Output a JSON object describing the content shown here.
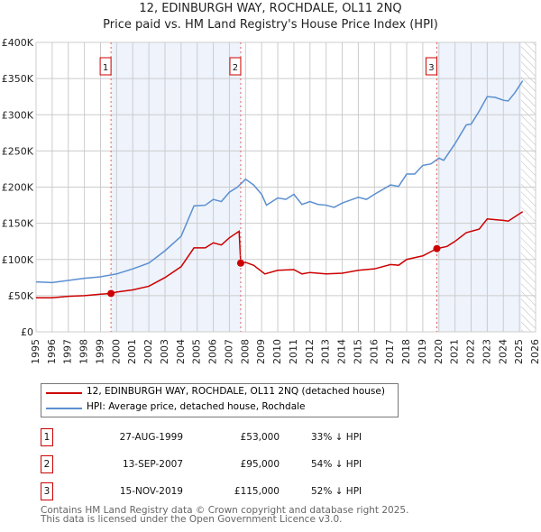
{
  "chart_data": {
    "type": "line",
    "title": "12, EDINBURGH WAY, ROCHDALE, OL11 2NQ",
    "subtitle": "Price paid vs. HM Land Registry's House Price Index (HPI)",
    "xlim": [
      1995,
      2026
    ],
    "ylim": [
      0,
      400000
    ],
    "x_ticks": [
      "1995",
      "1996",
      "1997",
      "1998",
      "1999",
      "2000",
      "2001",
      "2002",
      "2003",
      "2004",
      "2005",
      "2006",
      "2007",
      "2008",
      "2009",
      "2010",
      "2011",
      "2012",
      "2013",
      "2014",
      "2015",
      "2016",
      "2017",
      "2018",
      "2019",
      "2020",
      "2021",
      "2022",
      "2023",
      "2024",
      "2025",
      "2026"
    ],
    "y_ticks": [
      {
        "v": 0,
        "label": "£0"
      },
      {
        "v": 50000,
        "label": "£50K"
      },
      {
        "v": 100000,
        "label": "£100K"
      },
      {
        "v": 150000,
        "label": "£150K"
      },
      {
        "v": 200000,
        "label": "£200K"
      },
      {
        "v": 250000,
        "label": "£250K"
      },
      {
        "v": 300000,
        "label": "£300K"
      },
      {
        "v": 350000,
        "label": "£350K"
      },
      {
        "v": 400000,
        "label": "£400K"
      }
    ],
    "grid": true,
    "series": [
      {
        "name": "12, EDINBURGH WAY, ROCHDALE, OL11 2NQ (detached house)",
        "color": "#cc0000",
        "x": [
          1995,
          1996,
          1997,
          1998,
          1999,
          1999.65,
          2000,
          2001,
          2002,
          2003,
          2004,
          2004.8,
          2005.5,
          2006,
          2006.5,
          2007,
          2007.6,
          2007.7,
          2008,
          2008.5,
          2009.2,
          2010,
          2011,
          2011.5,
          2012,
          2013,
          2014,
          2015,
          2016,
          2017,
          2017.5,
          2018,
          2019,
          2019.87,
          2020.5,
          2021,
          2021.7,
          2022.5,
          2023,
          2023.5,
          2024,
          2024.3,
          2025.2
        ],
        "y": [
          47000,
          47000,
          49000,
          50000,
          52000,
          53000,
          55000,
          58000,
          63000,
          75000,
          90000,
          116000,
          116000,
          123000,
          120000,
          130000,
          139000,
          95000,
          96000,
          92000,
          80000,
          85000,
          86000,
          80000,
          82000,
          80000,
          81000,
          85000,
          87000,
          93000,
          92000,
          100000,
          105000,
          115000,
          118000,
          125000,
          137000,
          142000,
          156000,
          155000,
          154000,
          153000,
          166000
        ]
      },
      {
        "name": "HPI: Average price, detached house, Rochdale",
        "color": "#5b8fd0",
        "x": [
          1995,
          1996,
          1997,
          1998,
          1999,
          2000,
          2001,
          2002,
          2003,
          2004,
          2004.8,
          2005.5,
          2006,
          2006.5,
          2007,
          2007.5,
          2008,
          2008.5,
          2009,
          2009.3,
          2010,
          2010.5,
          2011,
          2011.5,
          2012,
          2012.5,
          2013,
          2013.5,
          2014,
          2015,
          2015.5,
          2016,
          2017,
          2017.5,
          2018,
          2018.5,
          2019,
          2019.5,
          2020,
          2020.3,
          2021,
          2021.7,
          2022,
          2022.5,
          2023,
          2023.5,
          2024,
          2024.3,
          2024.7,
          2025.2
        ],
        "y": [
          69000,
          68000,
          71000,
          74000,
          76000,
          80000,
          87000,
          95000,
          112000,
          132000,
          174000,
          175000,
          183000,
          180000,
          193000,
          200000,
          211000,
          203000,
          190000,
          175000,
          185000,
          183000,
          190000,
          176000,
          180000,
          176000,
          175000,
          172000,
          178000,
          186000,
          183000,
          190000,
          203000,
          201000,
          218000,
          218000,
          230000,
          232000,
          240000,
          237000,
          260000,
          286000,
          287000,
          305000,
          325000,
          324000,
          320000,
          319000,
          330000,
          347000
        ]
      }
    ],
    "sales": [
      {
        "n": "1",
        "x": 1999.65,
        "y": 53000
      },
      {
        "n": "2",
        "x": 2007.7,
        "y": 95000
      },
      {
        "n": "3",
        "x": 2019.87,
        "y": 115000
      }
    ],
    "shaded_ranges": [
      [
        1999.65,
        2007.7
      ],
      [
        2019.87,
        2025.1
      ]
    ],
    "hatched_from": 2025.1
  },
  "legend": {
    "red": "12, EDINBURGH WAY, ROCHDALE, OL11 2NQ (detached house)",
    "blue": "HPI: Average price, detached house, Rochdale"
  },
  "transactions": [
    {
      "n": "1",
      "date": "27-AUG-1999",
      "price": "£53,000",
      "hpi": "33% ↓ HPI"
    },
    {
      "n": "2",
      "date": "13-SEP-2007",
      "price": "£95,000",
      "hpi": "54% ↓ HPI"
    },
    {
      "n": "3",
      "date": "15-NOV-2019",
      "price": "£115,000",
      "hpi": "52% ↓ HPI"
    }
  ],
  "footer": {
    "line1": "Contains HM Land Registry data © Crown copyright and database right 2025.",
    "line2": "This data is licensed under the Open Government Licence v3.0."
  }
}
